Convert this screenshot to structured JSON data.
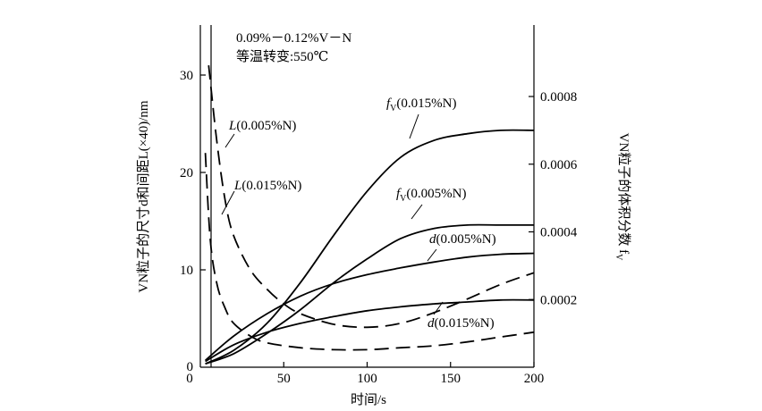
{
  "chart_data": {
    "type": "line",
    "annotation_lines": [
      "0.09%－0.12%V－N",
      "等温转变:550℃"
    ],
    "xlabel": "时间/s",
    "ylabel_left": "VN粒子的尺寸d和间距L(×40)/nm",
    "ylabel_right": "VN粒子的体积分数 f",
    "ylabel_right_sub": "V",
    "xlim": [
      0,
      200
    ],
    "ylim_left": [
      0,
      35
    ],
    "ylim_right": [
      0,
      0.00095
    ],
    "x_ticks": [
      0,
      50,
      100,
      150,
      200
    ],
    "x_tick_labels": [
      "0",
      "50",
      "100",
      "150",
      "200"
    ],
    "y_left_ticks": [
      0,
      10,
      20,
      30
    ],
    "y_left_tick_labels": [
      "0",
      "10",
      "20",
      "30"
    ],
    "y_right_ticks": [
      0.0002,
      0.0004,
      0.0006,
      0.0008
    ],
    "y_right_tick_labels": [
      "0.0002",
      "0.0004",
      "0.0006",
      "0.0008"
    ],
    "grid": false,
    "series": [
      {
        "name": "fV(0.015%N)",
        "label_main": "f",
        "label_sub": "V",
        "label_rest": "(0.015%N)",
        "axis": "right",
        "dash": "solid",
        "x": [
          3,
          20,
          40,
          60,
          80,
          100,
          120,
          140,
          160,
          180,
          200
        ],
        "y": [
          1e-05,
          5e-05,
          0.00013,
          0.00025,
          0.00039,
          0.00052,
          0.00062,
          0.00067,
          0.00069,
          0.0007,
          0.0007
        ]
      },
      {
        "name": "fV(0.005%N)",
        "label_main": "f",
        "label_sub": "V",
        "label_rest": "(0.005%N)",
        "axis": "right",
        "dash": "solid",
        "x": [
          3,
          20,
          40,
          60,
          80,
          100,
          120,
          140,
          160,
          180,
          200
        ],
        "y": [
          1e-05,
          4e-05,
          0.0001,
          0.00017,
          0.00025,
          0.00032,
          0.00038,
          0.00041,
          0.00042,
          0.00042,
          0.00042
        ]
      },
      {
        "name": "d(0.005%N)",
        "label_main": "d",
        "label_rest": "(0.005%N)",
        "axis": "left",
        "dash": "solid",
        "x": [
          3,
          20,
          40,
          60,
          80,
          100,
          120,
          140,
          160,
          180,
          200
        ],
        "y": [
          0.7,
          3.2,
          5.5,
          7.3,
          8.6,
          9.5,
          10.2,
          10.8,
          11.3,
          11.6,
          11.7
        ]
      },
      {
        "name": "d(0.015%N)",
        "label_main": "d",
        "label_rest": "(0.015%N)",
        "axis": "left",
        "dash": "solid",
        "x": [
          3,
          20,
          40,
          60,
          80,
          100,
          120,
          140,
          160,
          180,
          200
        ],
        "y": [
          0.6,
          2.3,
          3.6,
          4.5,
          5.2,
          5.8,
          6.2,
          6.5,
          6.7,
          6.9,
          6.9
        ]
      },
      {
        "name": "L(0.005%N)",
        "label_main": "L",
        "label_rest": "(0.005%N)",
        "axis": "left",
        "dash": "dashed",
        "x": [
          5,
          10,
          15,
          20,
          30,
          40,
          50,
          60,
          80,
          100,
          120,
          140,
          160,
          180,
          200
        ],
        "y": [
          31,
          23,
          17,
          13.5,
          10,
          8,
          6.5,
          5.5,
          4.4,
          4.1,
          4.5,
          5.6,
          7,
          8.5,
          9.7
        ]
      },
      {
        "name": "L(0.015%N)",
        "label_main": "L",
        "label_rest": "(0.015%N)",
        "axis": "left",
        "dash": "dashed",
        "x": [
          3,
          6,
          10,
          15,
          20,
          30,
          40,
          60,
          80,
          100,
          120,
          140,
          160,
          180,
          200
        ],
        "y": [
          22,
          13,
          8.5,
          6,
          4.5,
          3.2,
          2.5,
          2,
          1.8,
          1.8,
          2,
          2.2,
          2.6,
          3.1,
          3.6
        ]
      }
    ]
  }
}
